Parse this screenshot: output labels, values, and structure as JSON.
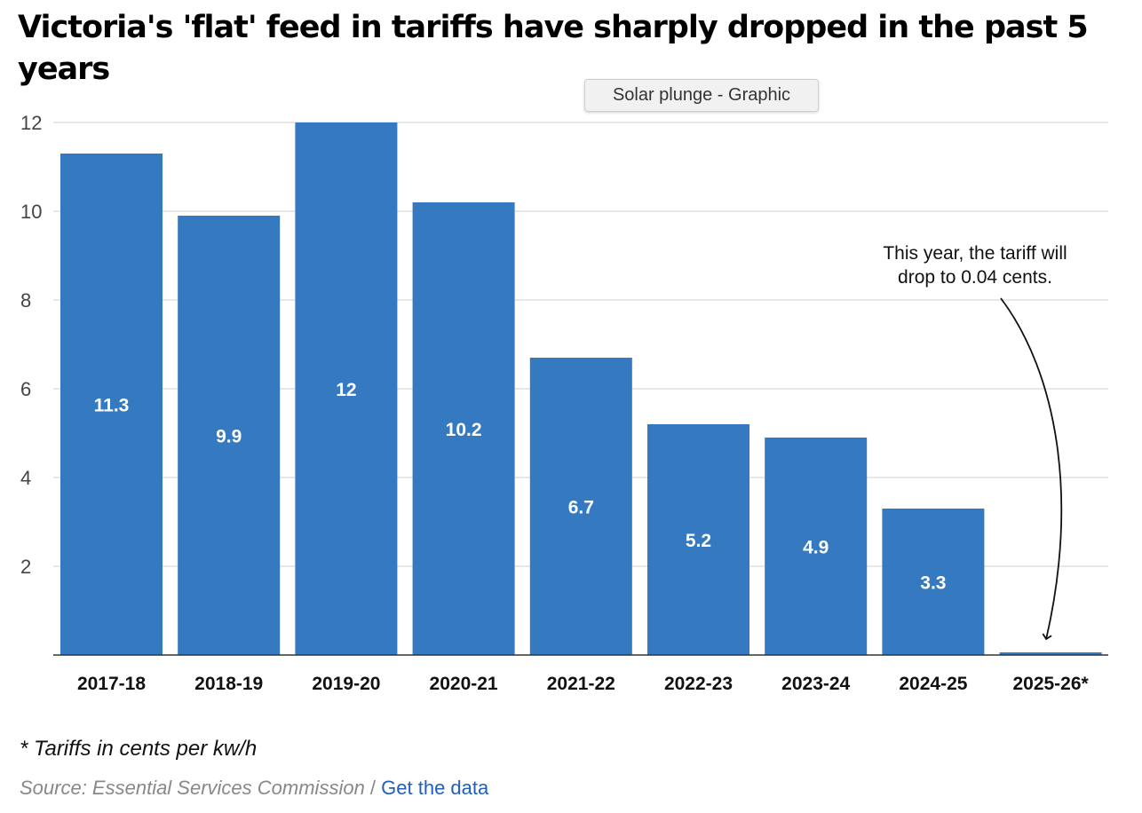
{
  "chart_data": {
    "type": "bar",
    "title": "Victoria's 'flat' feed in tariffs have sharply dropped in the past 5 years",
    "categories": [
      "2017-18",
      "2018-19",
      "2019-20",
      "2020-21",
      "2021-22",
      "2022-23",
      "2023-24",
      "2024-25",
      "2025-26*"
    ],
    "values": [
      11.3,
      9.9,
      12,
      10.2,
      6.7,
      5.2,
      4.9,
      3.3,
      0.04
    ],
    "data_labels": [
      "11.3",
      "9.9",
      "12",
      "10.2",
      "6.7",
      "5.2",
      "4.9",
      "3.3",
      ""
    ],
    "ylim": [
      0,
      12
    ],
    "yticks": [
      2,
      4,
      6,
      8,
      10,
      12
    ],
    "xlabel": "",
    "ylabel": "",
    "grid": true,
    "annotation": {
      "lines": [
        "This year, the tariff will",
        "drop to 0.04 cents."
      ],
      "target_category": "2025-26*"
    },
    "colors": {
      "bar": "#3579c0",
      "grid": "#d9d9d9",
      "axis": "#333333"
    }
  },
  "tooltip": "Solar plunge - Graphic",
  "footnote": "* Tariffs in cents per kw/h",
  "source": {
    "text": "Source: Essential Services Commission",
    "separator": " / ",
    "link": "Get the data"
  }
}
